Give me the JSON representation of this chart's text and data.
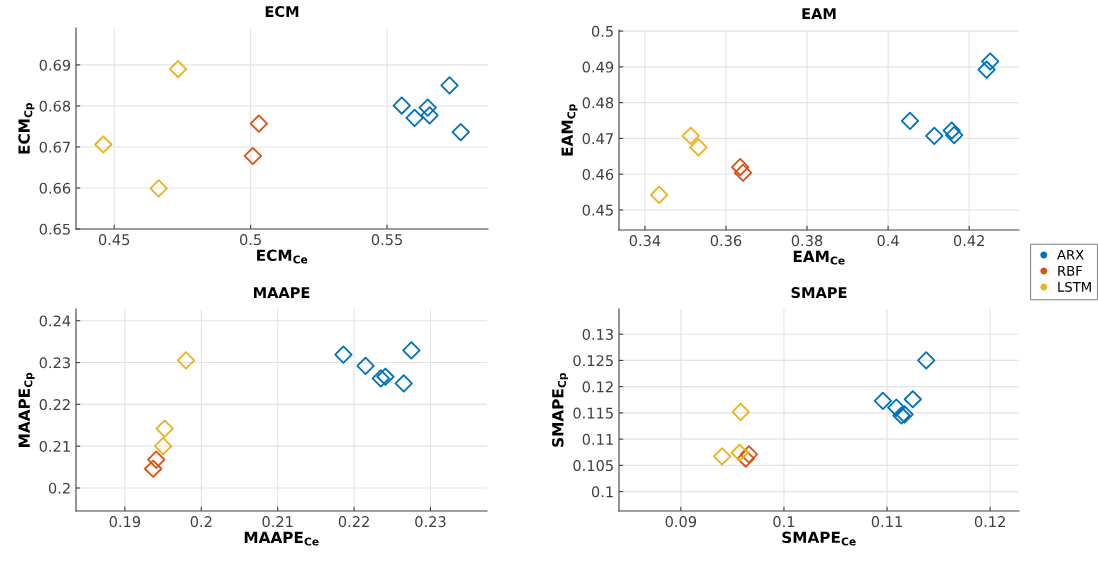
{
  "chart_data": [
    {
      "type": "scatter",
      "title": "ECM",
      "xlabel": "ECM$_{Ce}$",
      "ylabel": "ECM$_{Cp}$",
      "xlim": [
        0.436,
        0.587
      ],
      "ylim": [
        0.65,
        0.699
      ],
      "xticks": [
        0.45,
        0.5,
        0.55
      ],
      "yticks": [
        0.65,
        0.66,
        0.67,
        0.68,
        0.69
      ],
      "grid": true,
      "marker": "diamond",
      "legend": "right",
      "series": [
        {
          "name": "ARX",
          "color": "#0072bd",
          "x": [
            0.5554,
            0.5601,
            0.5649,
            0.5656,
            0.5729,
            0.577
          ],
          "values": [
            0.6801,
            0.6771,
            0.6796,
            0.6777,
            0.685,
            0.6736
          ]
        },
        {
          "name": "RBF",
          "color": "#d95319",
          "x": [
            0.5008,
            0.503
          ],
          "values": [
            0.6678,
            0.6757
          ]
        },
        {
          "name": "LSTM",
          "color": "#edb120",
          "x": [
            0.446,
            0.4734,
            0.4663
          ],
          "values": [
            0.6706,
            0.689,
            0.6599
          ]
        }
      ]
    },
    {
      "type": "scatter",
      "title": "EAM",
      "xlabel": "EAM$_{Ce}$",
      "ylabel": "EAM$_{Cp}$",
      "xlim": [
        0.3336,
        0.4323
      ],
      "ylim": [
        0.4444,
        0.5003
      ],
      "xticks": [
        0.34,
        0.36,
        0.38,
        0.4,
        0.42
      ],
      "yticks": [
        0.45,
        0.46,
        0.47,
        0.48,
        0.49,
        0.5
      ],
      "grid": true,
      "marker": "diamond",
      "series": [
        {
          "color": "#0072bd",
          "x": [
            0.4054,
            0.4114,
            0.4157,
            0.4163,
            0.4243,
            0.4252
          ],
          "values": [
            0.4749,
            0.4707,
            0.4722,
            0.4709,
            0.4892,
            0.4915
          ]
        },
        {
          "color": "#d95319",
          "x": [
            0.3635,
            0.3642
          ],
          "values": [
            0.462,
            0.4604
          ]
        },
        {
          "color": "#edb120",
          "x": [
            0.3435,
            0.3513,
            0.3532
          ],
          "values": [
            0.4542,
            0.4707,
            0.4675
          ]
        }
      ]
    },
    {
      "type": "scatter",
      "title": "MAAPE",
      "xlabel": "MAAPE$_{Ce}$",
      "ylabel": "MAAPE$_{Cp}$",
      "xlim": [
        0.1836,
        0.2374
      ],
      "ylim": [
        0.1945,
        0.2428
      ],
      "xticks": [
        0.19,
        0.2,
        0.21,
        0.22,
        0.23
      ],
      "yticks": [
        0.2,
        0.21,
        0.22,
        0.23,
        0.24
      ],
      "grid": true,
      "marker": "diamond",
      "series": [
        {
          "color": "#0072bd",
          "x": [
            0.2186,
            0.2215,
            0.2235,
            0.2241,
            0.2265,
            0.2275
          ],
          "values": [
            0.2319,
            0.2292,
            0.2262,
            0.2266,
            0.225,
            0.2329
          ]
        },
        {
          "color": "#d95319",
          "x": [
            0.1941,
            0.1937
          ],
          "values": [
            0.2068,
            0.2046
          ]
        },
        {
          "color": "#edb120",
          "x": [
            0.198,
            0.1952,
            0.195
          ],
          "values": [
            0.2305,
            0.2142,
            0.21
          ]
        }
      ]
    },
    {
      "type": "scatter",
      "title": "SMAPE",
      "xlabel": "SMAPE$_{Ce}$",
      "ylabel": "SMAPE$_{Cp}$",
      "xlim": [
        0.084,
        0.1228
      ],
      "ylim": [
        0.0963,
        0.1348
      ],
      "xticks": [
        0.09,
        0.1,
        0.11,
        0.12
      ],
      "yticks": [
        0.1,
        0.105,
        0.11,
        0.115,
        0.12,
        0.125,
        0.13
      ],
      "grid": true,
      "marker": "diamond",
      "series": [
        {
          "color": "#0072bd",
          "x": [
            0.1096,
            0.1109,
            0.1114,
            0.1117,
            0.1125,
            0.1138
          ],
          "values": [
            0.1173,
            0.116,
            0.1145,
            0.1147,
            0.1176,
            0.125
          ]
        },
        {
          "color": "#d95319",
          "x": [
            0.0963,
            0.0966
          ],
          "values": [
            0.1063,
            0.1071
          ]
        },
        {
          "color": "#edb120",
          "x": [
            0.094,
            0.0958,
            0.0957
          ],
          "values": [
            0.1067,
            0.1152,
            0.1074
          ]
        }
      ]
    }
  ]
}
